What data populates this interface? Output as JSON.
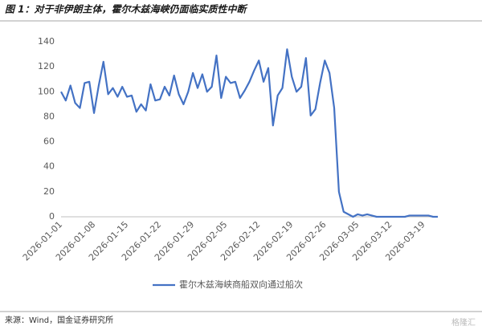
{
  "chart_data": {
    "type": "line",
    "title": "图 1：对于非伊朗主体，霍尔木兹海峡仍面临实质性中断",
    "source": "来源：Wind，国金证券研究所",
    "watermark": "格隆汇",
    "x": [
      "2026-01-01",
      "2026-01-02",
      "2026-01-03",
      "2026-01-04",
      "2026-01-05",
      "2026-01-06",
      "2026-01-07",
      "2026-01-08",
      "2026-01-09",
      "2026-01-10",
      "2026-01-11",
      "2026-01-12",
      "2026-01-13",
      "2026-01-14",
      "2026-01-15",
      "2026-01-16",
      "2026-01-17",
      "2026-01-18",
      "2026-01-19",
      "2026-01-20",
      "2026-01-21",
      "2026-01-22",
      "2026-01-23",
      "2026-01-24",
      "2026-01-25",
      "2026-01-26",
      "2026-01-27",
      "2026-01-28",
      "2026-01-29",
      "2026-01-30",
      "2026-01-31",
      "2026-02-01",
      "2026-02-02",
      "2026-02-03",
      "2026-02-04",
      "2026-02-05",
      "2026-02-06",
      "2026-02-07",
      "2026-02-08",
      "2026-02-09",
      "2026-02-10",
      "2026-02-11",
      "2026-02-12",
      "2026-02-13",
      "2026-02-14",
      "2026-02-15",
      "2026-02-16",
      "2026-02-17",
      "2026-02-18",
      "2026-02-19",
      "2026-02-20",
      "2026-02-21",
      "2026-02-22",
      "2026-02-23",
      "2026-02-24",
      "2026-02-25",
      "2026-02-26",
      "2026-02-27",
      "2026-02-28",
      "2026-03-01",
      "2026-03-02",
      "2026-03-03",
      "2026-03-04",
      "2026-03-05",
      "2026-03-06",
      "2026-03-07",
      "2026-03-08",
      "2026-03-09",
      "2026-03-10",
      "2026-03-11",
      "2026-03-12",
      "2026-03-13",
      "2026-03-14",
      "2026-03-15",
      "2026-03-16",
      "2026-03-17",
      "2026-03-18",
      "2026-03-19",
      "2026-03-20",
      "2026-03-21",
      "2026-03-22"
    ],
    "series": [
      {
        "name": "霍尔木兹海峡商船双向通过船次",
        "color": "#4472c4",
        "values": [
          100,
          93,
          105,
          91,
          87,
          107,
          108,
          83,
          105,
          124,
          98,
          103,
          96,
          104,
          96,
          97,
          84,
          90,
          85,
          106,
          93,
          94,
          104,
          97,
          113,
          98,
          90,
          100,
          115,
          103,
          114,
          100,
          104,
          129,
          95,
          112,
          107,
          108,
          95,
          101,
          108,
          117,
          125,
          108,
          119,
          73,
          97,
          103,
          134,
          112,
          100,
          104,
          127,
          81,
          86,
          107,
          125,
          115,
          87,
          20,
          4,
          2,
          0,
          2,
          1,
          2,
          1,
          0,
          0,
          0,
          0,
          0,
          0,
          0,
          1,
          1,
          1,
          1,
          1,
          0,
          0
        ]
      }
    ],
    "xticks": [
      "2026-01-01",
      "2026-01-08",
      "2026-01-15",
      "2026-01-22",
      "2026-01-29",
      "2026-02-05",
      "2026-02-12",
      "2026-02-19",
      "2026-02-26",
      "2026-03-05",
      "2026-03-12",
      "2026-03-19"
    ],
    "ylim": [
      0,
      140
    ],
    "yticks": [
      0,
      20,
      40,
      60,
      80,
      100,
      120,
      140
    ],
    "grid": false
  }
}
